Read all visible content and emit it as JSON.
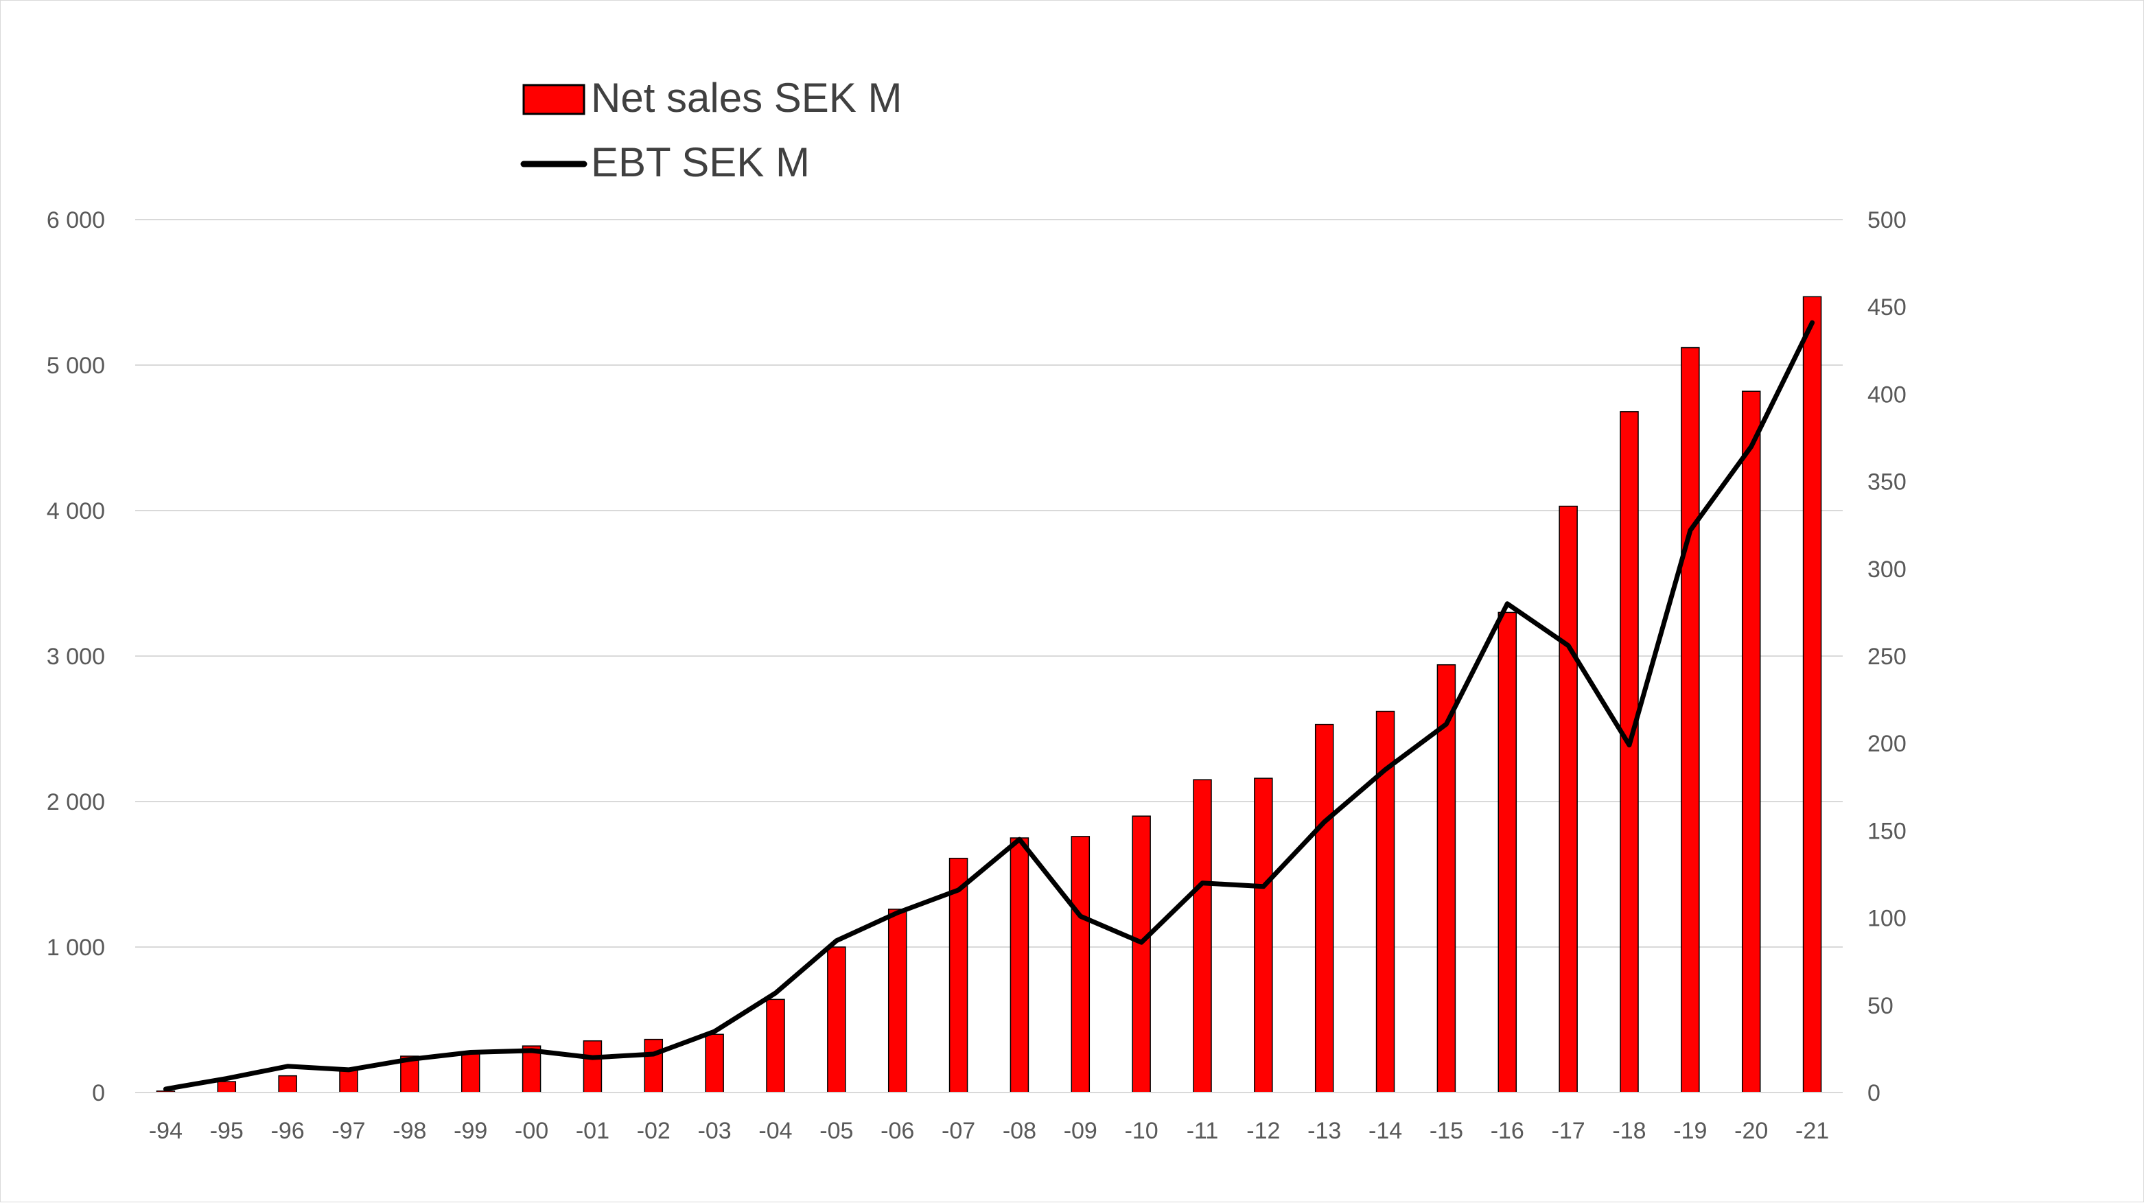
{
  "chart_data": {
    "type": "bar+line",
    "categories": [
      "-94",
      "-95",
      "-96",
      "-97",
      "-98",
      "-99",
      "-00",
      "-01",
      "-02",
      "-03",
      "-04",
      "-05",
      "-06",
      "-07",
      "-08",
      "-09",
      "-10",
      "-11",
      "-12",
      "-13",
      "-14",
      "-15",
      "-16",
      "-17",
      "-18",
      "-19",
      "-20",
      "-21"
    ],
    "series": [
      {
        "name": "Net sales SEK M",
        "type": "bar",
        "axis": "left",
        "color": "#ff0000",
        "values": [
          10,
          75,
          115,
          160,
          250,
          280,
          320,
          355,
          365,
          400,
          640,
          1000,
          1260,
          1610,
          1750,
          1760,
          1900,
          2150,
          2160,
          2530,
          2620,
          2940,
          3300,
          4030,
          4680,
          5120,
          4820,
          5470
        ]
      },
      {
        "name": "EBT SEK M",
        "type": "line",
        "axis": "right",
        "color": "#000000",
        "values": [
          2,
          8,
          15,
          13,
          19,
          23,
          24,
          20,
          22,
          35,
          57,
          87,
          103,
          116,
          145,
          101,
          86,
          120,
          118,
          155,
          185,
          211,
          280,
          256,
          199,
          322,
          370,
          441
        ]
      }
    ],
    "y_left": {
      "ylim": [
        0,
        6000
      ],
      "ticks": [
        0,
        1000,
        2000,
        3000,
        4000,
        5000,
        6000
      ],
      "tick_labels": [
        "0",
        "1 000",
        "2 000",
        "3 000",
        "4 000",
        "5 000",
        "6 000"
      ]
    },
    "y_right": {
      "ylim": [
        0,
        500
      ],
      "ticks": [
        0,
        50,
        100,
        150,
        200,
        250,
        300,
        350,
        400,
        450,
        500
      ],
      "tick_labels": [
        "0",
        "50",
        "100",
        "150",
        "200",
        "250",
        "300",
        "350",
        "400",
        "450",
        "500"
      ]
    },
    "grid": true,
    "legend_position": "top-left",
    "title": "",
    "xlabel": "",
    "ylabel": ""
  }
}
